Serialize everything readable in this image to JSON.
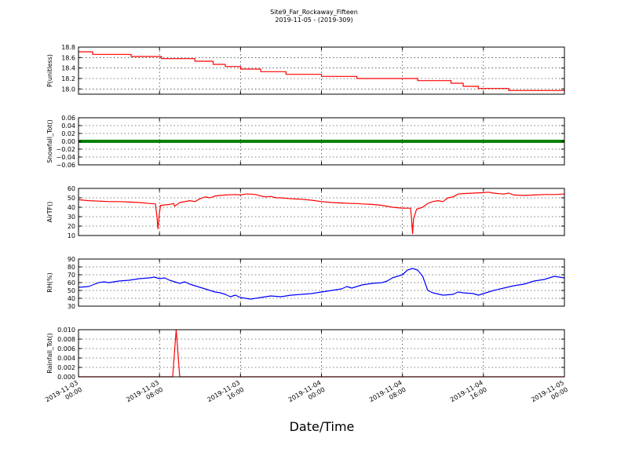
{
  "chart_data": {
    "type": "line",
    "title": "Site9_Far_Rockaway_Fifteen",
    "subtitle": "2019-11-05 - (2019-309)",
    "xlabel": "Date/Time",
    "x_range": [
      "2019-11-03 00:00",
      "2019-11-05 00:00"
    ],
    "x_tick_labels": [
      [
        "2019-11-03",
        "00:00"
      ],
      [
        "2019-11-03",
        "08:00"
      ],
      [
        "2019-11-03",
        "16:00"
      ],
      [
        "2019-11-04",
        "00:00"
      ],
      [
        "2019-11-04",
        "08:00"
      ],
      [
        "2019-11-04",
        "16:00"
      ],
      [
        "2019-11-05",
        "00:00"
      ]
    ],
    "grid": true,
    "panels": [
      {
        "ylabel": "P(unitless)",
        "ylim": [
          17.9,
          18.8
        ],
        "yticks": [
          "18.8",
          "18.6",
          "18.4",
          "18.2",
          "18.0"
        ],
        "ytick_values": [
          18.8,
          18.6,
          18.4,
          18.2,
          18.0
        ],
        "color": "#ff0000",
        "style": "step",
        "series": [
          [
            0,
            18.71
          ],
          [
            1.4,
            18.66
          ],
          [
            5.2,
            18.62
          ],
          [
            8.2,
            18.58
          ],
          [
            11.5,
            18.53
          ],
          [
            13.3,
            18.47
          ],
          [
            14.5,
            18.43
          ],
          [
            16.0,
            18.38
          ],
          [
            18.0,
            18.33
          ],
          [
            20.5,
            18.28
          ],
          [
            24.0,
            18.24
          ],
          [
            27.5,
            18.2
          ],
          [
            33.5,
            18.16
          ],
          [
            36.8,
            18.11
          ],
          [
            38.0,
            18.05
          ],
          [
            39.5,
            18.01
          ],
          [
            42.5,
            17.97
          ],
          [
            48,
            17.97
          ]
        ]
      },
      {
        "ylabel": "Snowfall_Tot()",
        "ylim": [
          -0.06,
          0.06
        ],
        "yticks": [
          "0.06",
          "0.04",
          "0.02",
          "0.00",
          "−0.02",
          "−0.04",
          "−0.06"
        ],
        "ytick_values": [
          0.06,
          0.04,
          0.02,
          0.0,
          -0.02,
          -0.04,
          -0.06
        ],
        "color": "#008000",
        "style": "thick",
        "series": [
          [
            0,
            0
          ],
          [
            48,
            0
          ]
        ]
      },
      {
        "ylabel": "AirTF()",
        "ylim": [
          10,
          60
        ],
        "yticks": [
          "60",
          "50",
          "40",
          "30",
          "20",
          "10"
        ],
        "ytick_values": [
          60,
          50,
          40,
          30,
          20,
          10
        ],
        "color": "#ff0000",
        "style": "line",
        "series": [
          [
            0,
            48
          ],
          [
            1,
            47
          ],
          [
            2,
            46.5
          ],
          [
            3,
            46
          ],
          [
            4,
            46
          ],
          [
            5,
            45.5
          ],
          [
            6,
            45
          ],
          [
            7,
            44
          ],
          [
            7.6,
            43.5
          ],
          [
            7.75,
            30
          ],
          [
            7.85,
            17
          ],
          [
            7.95,
            30
          ],
          [
            8.1,
            42
          ],
          [
            9,
            43
          ],
          [
            9.4,
            44
          ],
          [
            9.5,
            41
          ],
          [
            10,
            45
          ],
          [
            11,
            47
          ],
          [
            11.5,
            46
          ],
          [
            12,
            49
          ],
          [
            12.5,
            51
          ],
          [
            13,
            50
          ],
          [
            13.5,
            52
          ],
          [
            14.5,
            53
          ],
          [
            15.5,
            53.5
          ],
          [
            16,
            53
          ],
          [
            16.5,
            54
          ],
          [
            17,
            54
          ],
          [
            17.5,
            53.5
          ],
          [
            18,
            52
          ],
          [
            18.5,
            51
          ],
          [
            19,
            51.5
          ],
          [
            19.5,
            50
          ],
          [
            20,
            50
          ],
          [
            21,
            49
          ],
          [
            22,
            48.5
          ],
          [
            23,
            47.5
          ],
          [
            24,
            46
          ],
          [
            25,
            45
          ],
          [
            26,
            44.5
          ],
          [
            27,
            44
          ],
          [
            27.5,
            44
          ],
          [
            28,
            43.5
          ],
          [
            29,
            43
          ],
          [
            30,
            42
          ],
          [
            31,
            40
          ],
          [
            32,
            39
          ],
          [
            32.8,
            39
          ],
          [
            32.9,
            28
          ],
          [
            33.0,
            12
          ],
          [
            33.1,
            28
          ],
          [
            33.4,
            38
          ],
          [
            34,
            40
          ],
          [
            34.5,
            44
          ],
          [
            35,
            46
          ],
          [
            35.5,
            47
          ],
          [
            36,
            46
          ],
          [
            36.5,
            50
          ],
          [
            37,
            51
          ],
          [
            37.5,
            54
          ],
          [
            38,
            54.5
          ],
          [
            39,
            55
          ],
          [
            40,
            55.5
          ],
          [
            40.5,
            56
          ],
          [
            41,
            55
          ],
          [
            42,
            54
          ],
          [
            42.5,
            55
          ],
          [
            43,
            53
          ],
          [
            44,
            52.5
          ],
          [
            45,
            53
          ],
          [
            46,
            53.5
          ],
          [
            47,
            53.5
          ],
          [
            48,
            54
          ]
        ]
      },
      {
        "ylabel": "RH(%)",
        "ylim": [
          30,
          90
        ],
        "yticks": [
          "90",
          "80",
          "70",
          "60",
          "50",
          "40",
          "30"
        ],
        "ytick_values": [
          90,
          80,
          70,
          60,
          50,
          40,
          30
        ],
        "color": "#0000ff",
        "style": "line",
        "series": [
          [
            0,
            54
          ],
          [
            1,
            55
          ],
          [
            2,
            60
          ],
          [
            2.5,
            61
          ],
          [
            3,
            60
          ],
          [
            4,
            62
          ],
          [
            5,
            63
          ],
          [
            6,
            65
          ],
          [
            7,
            66
          ],
          [
            7.5,
            67
          ],
          [
            8,
            65
          ],
          [
            8.5,
            66
          ],
          [
            9,
            63
          ],
          [
            9.5,
            61
          ],
          [
            10,
            59
          ],
          [
            10.5,
            61
          ],
          [
            11,
            58
          ],
          [
            12,
            54
          ],
          [
            13,
            50
          ],
          [
            13.5,
            48
          ],
          [
            14,
            47
          ],
          [
            14.5,
            45
          ],
          [
            15,
            42
          ],
          [
            15.5,
            44
          ],
          [
            16,
            41
          ],
          [
            17,
            39
          ],
          [
            18,
            41
          ],
          [
            19,
            43
          ],
          [
            20,
            42
          ],
          [
            21,
            44
          ],
          [
            22,
            45
          ],
          [
            23,
            46
          ],
          [
            24,
            48
          ],
          [
            25,
            50
          ],
          [
            26,
            52
          ],
          [
            26.5,
            55
          ],
          [
            27,
            53
          ],
          [
            28,
            57
          ],
          [
            29,
            59
          ],
          [
            30,
            60
          ],
          [
            30.5,
            62
          ],
          [
            31,
            66
          ],
          [
            32,
            70
          ],
          [
            32.5,
            76
          ],
          [
            33,
            78
          ],
          [
            33.5,
            76
          ],
          [
            34,
            68
          ],
          [
            34.5,
            50
          ],
          [
            35,
            47
          ],
          [
            36,
            44
          ],
          [
            37,
            45
          ],
          [
            37.5,
            48
          ],
          [
            38,
            47
          ],
          [
            39,
            46
          ],
          [
            39.5,
            44
          ],
          [
            40,
            46
          ],
          [
            41,
            50
          ],
          [
            42,
            53
          ],
          [
            43,
            56
          ],
          [
            44,
            58
          ],
          [
            44.5,
            60
          ],
          [
            45,
            62
          ],
          [
            46,
            64
          ],
          [
            47,
            68
          ],
          [
            48,
            66
          ]
        ]
      },
      {
        "ylabel": "Rainfall_Tot()",
        "ylim": [
          0,
          0.01
        ],
        "yticks": [
          "0.010",
          "0.008",
          "0.006",
          "0.004",
          "0.002",
          "0.000"
        ],
        "ytick_values": [
          0.01,
          0.008,
          0.006,
          0.004,
          0.002,
          0.0
        ],
        "color": "#ff0000",
        "style": "line",
        "series": [
          [
            0,
            0
          ],
          [
            9.3,
            0
          ],
          [
            9.65,
            0.01
          ],
          [
            10.0,
            0
          ],
          [
            48,
            0
          ]
        ]
      }
    ]
  }
}
